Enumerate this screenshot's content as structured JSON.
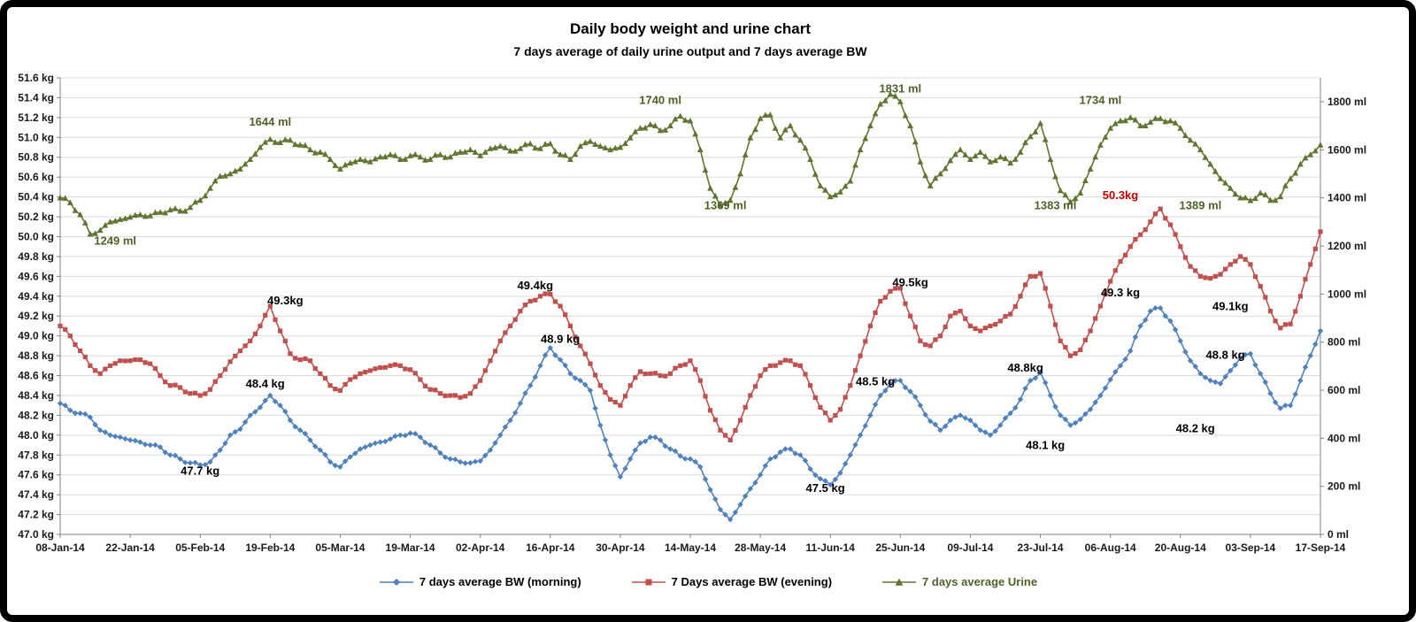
{
  "chart_data": {
    "type": "line",
    "title": "Daily body weight and urine chart",
    "subtitle": "7 days average of daily urine output and 7 days average BW",
    "legend_position": "bottom",
    "x_axis": {
      "tick_labels": [
        "08-Jan-14",
        "22-Jan-14",
        "05-Feb-14",
        "19-Feb-14",
        "05-Mar-14",
        "19-Mar-14",
        "02-Apr-14",
        "16-Apr-14",
        "30-Apr-14",
        "14-May-14",
        "28-May-14",
        "11-Jun-14",
        "25-Jun-14",
        "09-Jul-14",
        "23-Jul-14",
        "06-Aug-14",
        "20-Aug-14",
        "03-Sep-14",
        "17-Sep-14"
      ],
      "tick_day_interval": 14
    },
    "y_axis_left": {
      "label_suffix": " kg",
      "min": 47.0,
      "max": 51.6,
      "step": 0.2
    },
    "y_axis_right": {
      "label_suffix": " ml",
      "min": 0,
      "max": 1800,
      "step": 200
    },
    "day_step": 2,
    "series": [
      {
        "name": "7 days average BW (morning)",
        "axis": "left",
        "color": "#4F81BD",
        "marker": "diamond",
        "legend_text_color": "#000000",
        "values": [
          48.32,
          48.25,
          48.22,
          48.18,
          48.05,
          48.0,
          47.98,
          47.95,
          47.93,
          47.9,
          47.88,
          47.8,
          47.76,
          47.72,
          47.7,
          47.73,
          47.85,
          48.0,
          48.06,
          48.2,
          48.28,
          48.4,
          48.3,
          48.15,
          48.05,
          47.95,
          47.85,
          47.73,
          47.68,
          47.78,
          47.86,
          47.9,
          47.93,
          47.96,
          48.0,
          48.02,
          47.98,
          47.9,
          47.82,
          47.76,
          47.73,
          47.72,
          47.74,
          47.85,
          48.0,
          48.15,
          48.32,
          48.5,
          48.7,
          48.88,
          48.76,
          48.62,
          48.55,
          48.45,
          48.1,
          47.8,
          47.58,
          47.76,
          47.92,
          47.98,
          47.95,
          47.86,
          47.79,
          47.76,
          47.68,
          47.45,
          47.25,
          47.15,
          47.3,
          47.46,
          47.6,
          47.76,
          47.83,
          47.86,
          47.8,
          47.66,
          47.56,
          47.5,
          47.62,
          47.8,
          48.0,
          48.2,
          48.4,
          48.52,
          48.55,
          48.44,
          48.3,
          48.14,
          48.05,
          48.15,
          48.2,
          48.15,
          48.05,
          48.0,
          48.1,
          48.22,
          48.36,
          48.55,
          48.63,
          48.4,
          48.2,
          48.1,
          48.16,
          48.26,
          48.4,
          48.56,
          48.7,
          48.85,
          49.1,
          49.25,
          49.28,
          49.15,
          48.95,
          48.75,
          48.62,
          48.55,
          48.52,
          48.65,
          48.78,
          48.82,
          48.62,
          48.42,
          48.27,
          48.3,
          48.55,
          48.8,
          49.05
        ]
      },
      {
        "name": "7 Days average BW (evening)",
        "axis": "left",
        "color": "#C0504D",
        "marker": "square",
        "legend_text_color": "#000000",
        "values": [
          49.1,
          49.0,
          48.85,
          48.7,
          48.62,
          48.7,
          48.75,
          48.75,
          48.76,
          48.72,
          48.6,
          48.5,
          48.48,
          48.42,
          48.4,
          48.46,
          48.6,
          48.74,
          48.85,
          48.95,
          49.1,
          49.3,
          49.05,
          48.82,
          48.76,
          48.75,
          48.62,
          48.5,
          48.45,
          48.56,
          48.62,
          48.65,
          48.68,
          48.7,
          48.7,
          48.66,
          48.56,
          48.46,
          48.42,
          48.4,
          48.38,
          48.42,
          48.55,
          48.75,
          48.95,
          49.1,
          49.25,
          49.35,
          49.4,
          49.42,
          49.3,
          49.1,
          48.9,
          48.72,
          48.5,
          48.36,
          48.3,
          48.5,
          48.64,
          48.62,
          48.6,
          48.62,
          48.7,
          48.75,
          48.55,
          48.25,
          48.05,
          47.95,
          48.15,
          48.4,
          48.6,
          48.7,
          48.73,
          48.75,
          48.7,
          48.5,
          48.28,
          48.15,
          48.26,
          48.5,
          48.8,
          49.1,
          49.35,
          49.45,
          49.48,
          49.2,
          48.95,
          48.9,
          49.0,
          49.2,
          49.25,
          49.1,
          49.05,
          49.1,
          49.15,
          49.22,
          49.4,
          49.6,
          49.63,
          49.3,
          48.95,
          48.8,
          48.86,
          49.05,
          49.3,
          49.55,
          49.75,
          49.9,
          50.02,
          50.15,
          50.28,
          50.12,
          49.9,
          49.7,
          49.6,
          49.58,
          49.62,
          49.72,
          49.8,
          49.72,
          49.5,
          49.25,
          49.08,
          49.12,
          49.4,
          49.72,
          50.05
        ]
      },
      {
        "name": "7 days average Urine",
        "axis": "right",
        "color": "#5F7530",
        "marker": "triangle",
        "legend_text_color": "#4F6228",
        "values": [
          1400,
          1380,
          1330,
          1249,
          1265,
          1300,
          1310,
          1320,
          1330,
          1325,
          1340,
          1350,
          1345,
          1360,
          1390,
          1440,
          1490,
          1500,
          1520,
          1560,
          1610,
          1644,
          1630,
          1640,
          1620,
          1600,
          1590,
          1560,
          1520,
          1545,
          1560,
          1550,
          1570,
          1580,
          1560,
          1575,
          1570,
          1560,
          1580,
          1570,
          1590,
          1600,
          1575,
          1605,
          1615,
          1595,
          1605,
          1625,
          1605,
          1625,
          1580,
          1560,
          1615,
          1635,
          1615,
          1600,
          1610,
          1650,
          1690,
          1705,
          1680,
          1700,
          1740,
          1720,
          1600,
          1440,
          1369,
          1390,
          1500,
          1650,
          1730,
          1745,
          1650,
          1700,
          1640,
          1560,
          1450,
          1405,
          1425,
          1470,
          1600,
          1700,
          1790,
          1831,
          1800,
          1700,
          1550,
          1450,
          1500,
          1555,
          1600,
          1560,
          1590,
          1550,
          1570,
          1545,
          1590,
          1655,
          1710,
          1560,
          1430,
          1383,
          1420,
          1520,
          1620,
          1690,
          1720,
          1734,
          1700,
          1715,
          1730,
          1720,
          1690,
          1640,
          1600,
          1540,
          1480,
          1440,
          1400,
          1389,
          1420,
          1390,
          1405,
          1480,
          1540,
          1580,
          1620
        ]
      }
    ],
    "annotations": [
      {
        "text": "1249 ml",
        "axis": "right",
        "day": 11,
        "value": 1205,
        "color": "#4F6228"
      },
      {
        "text": "1644 ml",
        "axis": "right",
        "day": 42,
        "value": 1700,
        "color": "#4F6228"
      },
      {
        "text": "1740 ml",
        "axis": "right",
        "day": 120,
        "value": 1790,
        "color": "#4F6228"
      },
      {
        "text": "1369 ml",
        "axis": "right",
        "day": 133,
        "value": 1352,
        "color": "#4F6228"
      },
      {
        "text": "1831 ml",
        "axis": "right",
        "day": 168,
        "value": 1838,
        "color": "#4F6228"
      },
      {
        "text": "1383 ml",
        "axis": "right",
        "day": 199,
        "value": 1352,
        "color": "#4F6228"
      },
      {
        "text": "1734 ml",
        "axis": "right",
        "day": 208,
        "value": 1790,
        "color": "#4F6228"
      },
      {
        "text": "1389 ml",
        "axis": "right",
        "day": 228,
        "value": 1352,
        "color": "#4F6228"
      },
      {
        "text": "47.7 kg",
        "axis": "left",
        "day": 28,
        "value": 47.6,
        "color": "#000000"
      },
      {
        "text": "48.4 kg",
        "axis": "left",
        "day": 41,
        "value": 48.48,
        "color": "#000000"
      },
      {
        "text": "48.9 kg",
        "axis": "left",
        "day": 100,
        "value": 48.93,
        "color": "#000000"
      },
      {
        "text": "47.5 kg",
        "axis": "left",
        "day": 153,
        "value": 47.43,
        "color": "#000000"
      },
      {
        "text": "48.5 kg",
        "axis": "left",
        "day": 163,
        "value": 48.5,
        "color": "#000000"
      },
      {
        "text": "48.1 kg",
        "axis": "left",
        "day": 197,
        "value": 47.86,
        "color": "#000000"
      },
      {
        "text": "49.3 kg",
        "axis": "left",
        "day": 212,
        "value": 49.4,
        "color": "#000000"
      },
      {
        "text": "48.2 kg",
        "axis": "left",
        "day": 227,
        "value": 48.03,
        "color": "#000000"
      },
      {
        "text": "48.8 kg",
        "axis": "left",
        "day": 233,
        "value": 48.77,
        "color": "#000000"
      },
      {
        "text": "49.3kg",
        "axis": "left",
        "day": 45,
        "value": 49.32,
        "color": "#000000"
      },
      {
        "text": "49.4kg",
        "axis": "left",
        "day": 95,
        "value": 49.47,
        "color": "#000000"
      },
      {
        "text": "49.5kg",
        "axis": "left",
        "day": 170,
        "value": 49.5,
        "color": "#000000"
      },
      {
        "text": "48.8kg",
        "axis": "left",
        "day": 193,
        "value": 48.64,
        "color": "#000000"
      },
      {
        "text": "50.3kg",
        "axis": "left",
        "day": 212,
        "value": 50.38,
        "color": "#C00000"
      },
      {
        "text": "49.1kg",
        "axis": "left",
        "day": 234,
        "value": 49.26,
        "color": "#000000"
      }
    ]
  }
}
